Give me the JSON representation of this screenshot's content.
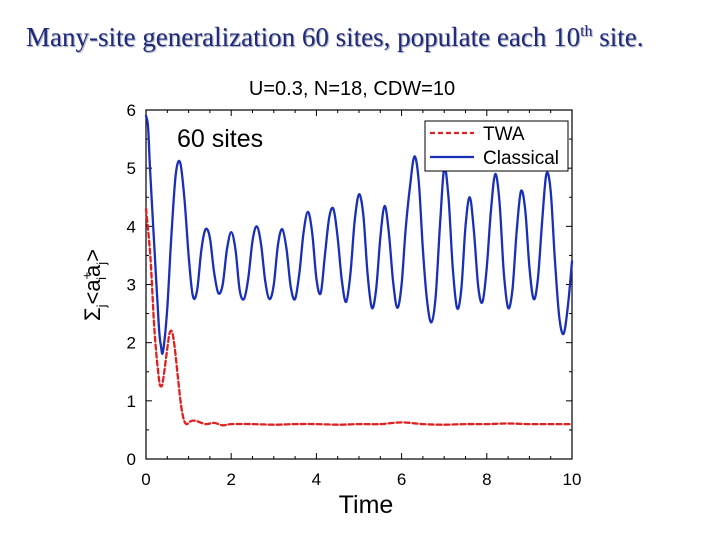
{
  "slide": {
    "title_main": "Many-site generalization 60 sites, populate each 10",
    "title_sup": "th",
    "title_end": " site."
  },
  "chart_data": {
    "type": "line",
    "title": "U=0.3, N=18, CDW=10",
    "annotation": "60 sites",
    "xlabel": "Time",
    "ylabel": {
      "sum": "Σ",
      "sum_sub": "j",
      "open": "<a",
      "dagger": "+",
      "sub_i": "i",
      "mid": "a",
      "sub_j": "j",
      "close": ">"
    },
    "xlim": [
      0,
      10
    ],
    "ylim": [
      0,
      6
    ],
    "xticks": [
      0,
      2,
      4,
      6,
      8,
      10
    ],
    "yticks": [
      0,
      1,
      2,
      3,
      4,
      5,
      6
    ],
    "grid": false,
    "legend_position": "top-right",
    "series": [
      {
        "name": "TWA",
        "color": "#e02020",
        "style": "dashed",
        "x": [
          0,
          0.1,
          0.2,
          0.3,
          0.35,
          0.4,
          0.5,
          0.55,
          0.6,
          0.65,
          0.7,
          0.75,
          0.8,
          0.85,
          0.9,
          0.95,
          1.0,
          1.05,
          1.1,
          1.2,
          1.4,
          1.6,
          1.8,
          2.0,
          2.5,
          3.0,
          3.5,
          4.0,
          4.5,
          5.0,
          5.5,
          6.0,
          6.5,
          7.0,
          7.5,
          8.0,
          8.5,
          9.0,
          9.5,
          10.0
        ],
        "y": [
          4.3,
          3.5,
          2.2,
          1.4,
          1.25,
          1.35,
          1.9,
          2.15,
          2.2,
          2.05,
          1.75,
          1.4,
          1.05,
          0.8,
          0.65,
          0.6,
          0.62,
          0.65,
          0.66,
          0.65,
          0.6,
          0.62,
          0.58,
          0.6,
          0.6,
          0.59,
          0.6,
          0.6,
          0.59,
          0.6,
          0.6,
          0.63,
          0.6,
          0.59,
          0.6,
          0.6,
          0.61,
          0.6,
          0.6,
          0.6
        ]
      },
      {
        "name": "Classical",
        "color": "#1a2fb8",
        "style": "solid",
        "x": [
          0,
          0.05,
          0.1,
          0.2,
          0.3,
          0.35,
          0.4,
          0.5,
          0.6,
          0.7,
          0.8,
          0.9,
          1.0,
          1.1,
          1.2,
          1.3,
          1.4,
          1.5,
          1.6,
          1.7,
          1.8,
          1.9,
          2.0,
          2.1,
          2.2,
          2.3,
          2.4,
          2.5,
          2.6,
          2.7,
          2.8,
          2.9,
          3.0,
          3.1,
          3.2,
          3.3,
          3.4,
          3.5,
          3.6,
          3.7,
          3.8,
          3.9,
          4.0,
          4.1,
          4.2,
          4.3,
          4.4,
          4.5,
          4.6,
          4.7,
          4.8,
          4.9,
          5.0,
          5.1,
          5.2,
          5.3,
          5.4,
          5.5,
          5.6,
          5.7,
          5.8,
          5.9,
          6.0,
          6.1,
          6.2,
          6.3,
          6.4,
          6.5,
          6.6,
          6.7,
          6.8,
          6.9,
          7.0,
          7.1,
          7.2,
          7.3,
          7.4,
          7.5,
          7.6,
          7.7,
          7.8,
          7.9,
          8.0,
          8.1,
          8.2,
          8.3,
          8.4,
          8.5,
          8.6,
          8.7,
          8.8,
          8.9,
          9.0,
          9.1,
          9.2,
          9.3,
          9.4,
          9.5,
          9.6,
          9.7,
          9.8,
          9.9,
          10.0
        ],
        "y": [
          5.9,
          5.7,
          4.9,
          3.6,
          2.3,
          1.95,
          1.85,
          2.6,
          3.9,
          4.9,
          5.1,
          4.5,
          3.5,
          2.8,
          2.9,
          3.6,
          3.95,
          3.8,
          3.2,
          2.85,
          3.0,
          3.6,
          3.9,
          3.6,
          2.9,
          2.75,
          3.1,
          3.75,
          4.0,
          3.7,
          3.05,
          2.75,
          3.0,
          3.7,
          3.95,
          3.6,
          2.95,
          2.75,
          3.2,
          3.9,
          4.25,
          3.9,
          3.1,
          2.85,
          3.5,
          4.15,
          4.3,
          3.8,
          3.05,
          2.7,
          3.2,
          4.1,
          4.55,
          4.2,
          3.2,
          2.6,
          2.9,
          3.8,
          4.35,
          3.9,
          3.05,
          2.6,
          3.0,
          4.0,
          4.7,
          5.2,
          4.8,
          3.6,
          2.7,
          2.35,
          2.8,
          4.0,
          5.0,
          4.5,
          3.3,
          2.6,
          2.9,
          4.0,
          4.5,
          3.9,
          2.95,
          2.7,
          3.3,
          4.3,
          4.9,
          4.4,
          3.2,
          2.6,
          2.9,
          3.9,
          4.6,
          4.3,
          3.3,
          2.75,
          3.1,
          4.1,
          4.9,
          4.6,
          3.4,
          2.45,
          2.15,
          2.6,
          3.4
        ]
      }
    ]
  }
}
